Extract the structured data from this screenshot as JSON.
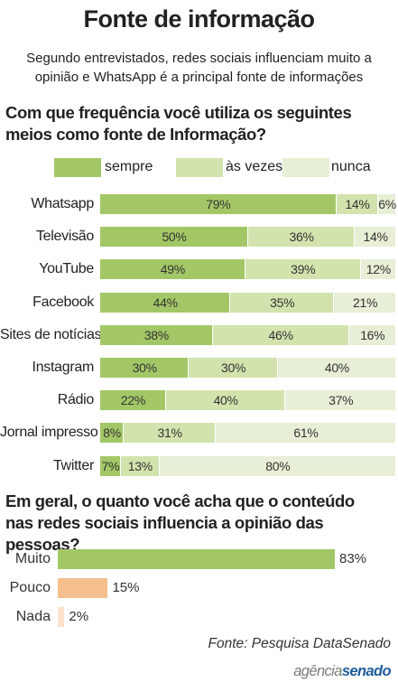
{
  "title": "Fonte de informação",
  "subtitle": "Segundo entrevistados, redes sociais influenciam muito a opinião e WhatsApp é a principal fonte de informações",
  "source": "Fonte: Pesquisa DataSenado",
  "brand": {
    "part1": "agência",
    "part2": "senado"
  },
  "colors": {
    "sempre": "#a3c766",
    "as_vezes": "#d2e3ad",
    "nunca": "#e7efd6",
    "pouco": "#f5bf8e",
    "nada": "#fbe2cc"
  },
  "chart_data": [
    {
      "type": "bar",
      "stacked": true,
      "orientation": "horizontal",
      "title": "Com que frequência você utiliza os seguintes meios como fonte de Informação?",
      "legend": [
        "sempre",
        "às vezes",
        "nunca"
      ],
      "categories": [
        "Whatsapp",
        "Televisão",
        "YouTube",
        "Facebook",
        "Sites de notícias",
        "Instagram",
        "Rádio",
        "Jornal impresso",
        "Twitter"
      ],
      "series": [
        {
          "name": "sempre",
          "values": [
            79,
            50,
            49,
            44,
            38,
            30,
            22,
            8,
            7
          ]
        },
        {
          "name": "às vezes",
          "values": [
            14,
            36,
            39,
            35,
            46,
            30,
            40,
            31,
            13
          ]
        },
        {
          "name": "nunca",
          "values": [
            6,
            14,
            12,
            21,
            16,
            40,
            37,
            61,
            80
          ]
        }
      ],
      "unit": "%"
    },
    {
      "type": "bar",
      "orientation": "horizontal",
      "title": "Em geral, o quanto você acha que o conteúdo nas redes sociais influencia a opinião das pessoas?",
      "categories": [
        "Muito",
        "Pouco",
        "Nada"
      ],
      "values": [
        83,
        15,
        2
      ],
      "unit": "%"
    }
  ]
}
